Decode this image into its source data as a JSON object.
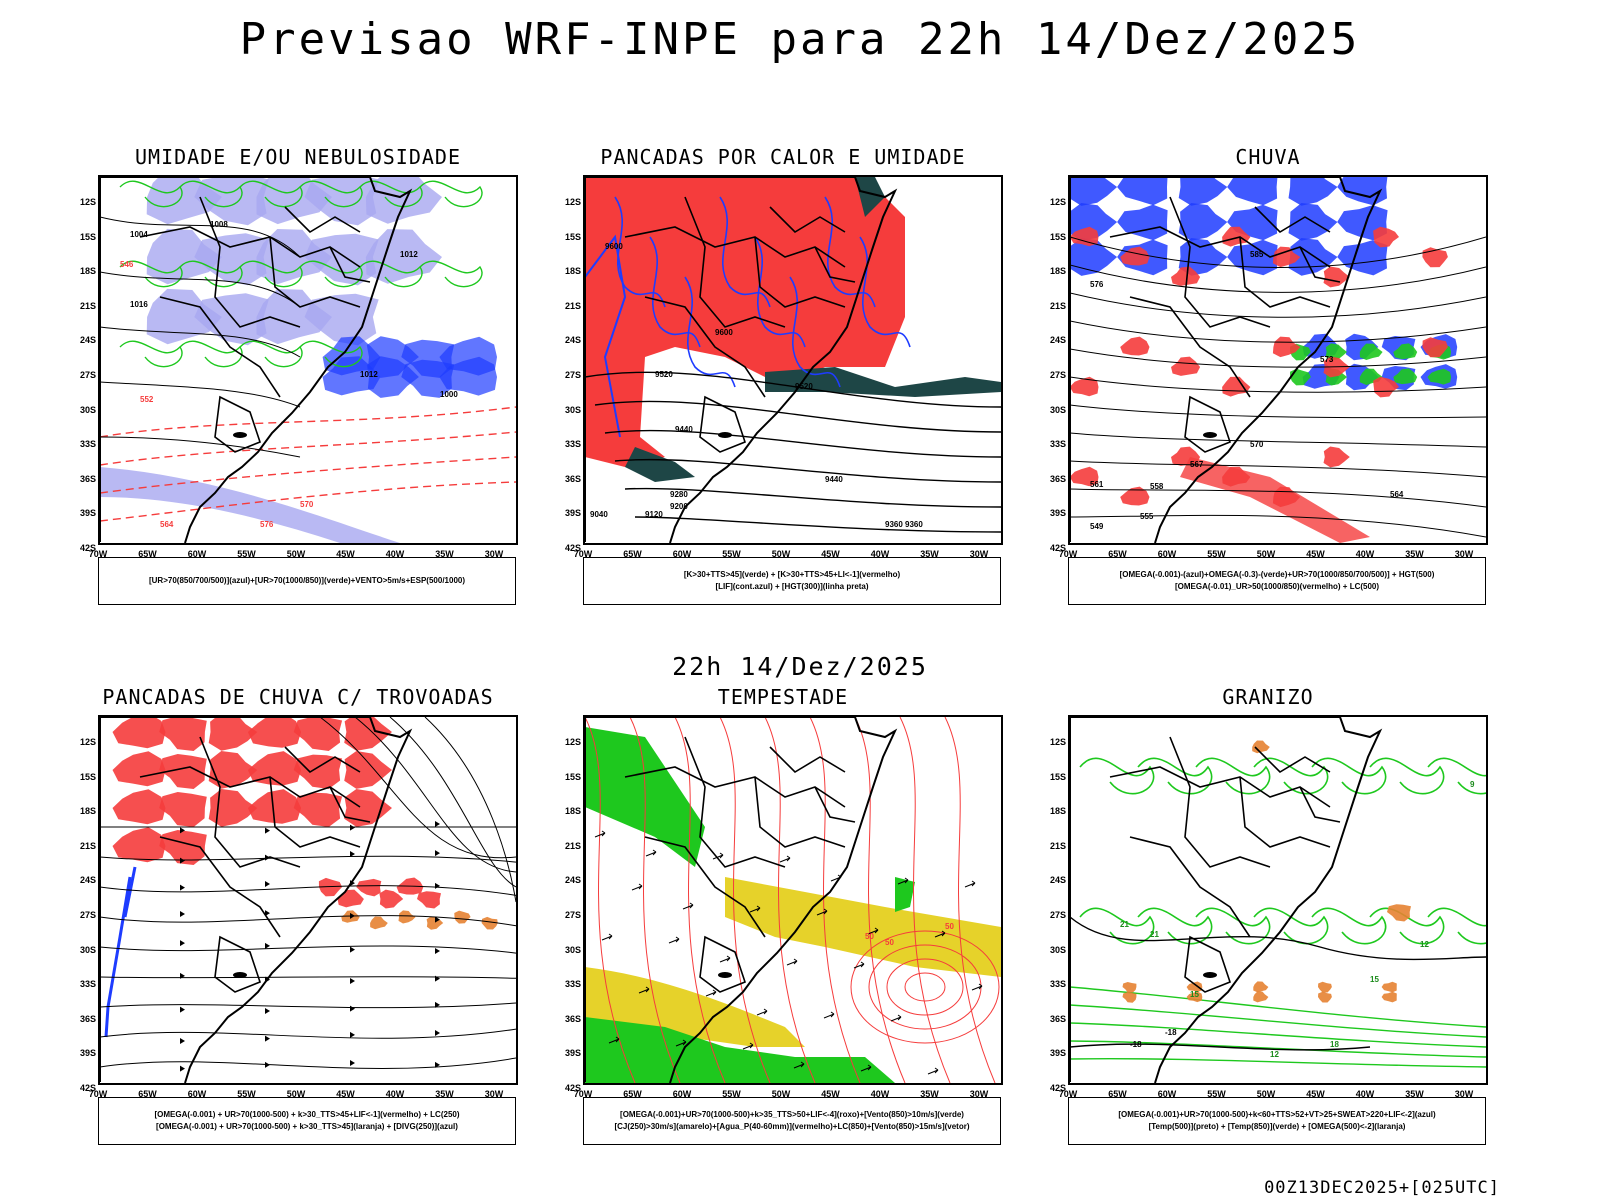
{
  "title": "Previsao WRF-INPE  para 22h 14/Dez/2025",
  "mid_time": "22h 14/Dez/2025",
  "footer": "00Z13DEC2025+[025UTC]",
  "lat_labels": [
    "12S",
    "15S",
    "18S",
    "21S",
    "24S",
    "27S",
    "30S",
    "33S",
    "36S",
    "39S",
    "42S"
  ],
  "lon_labels": [
    "70W",
    "65W",
    "60W",
    "55W",
    "50W",
    "45W",
    "40W",
    "35W",
    "30W"
  ],
  "colors": {
    "red": "#f53c3c",
    "blue": "#1e3cff",
    "light_blue": "#a8a8f0",
    "green": "#1ec81e",
    "yellow": "#e6d22a",
    "orange": "#e68232",
    "dark_teal": "#1e4646",
    "black": "#000000"
  },
  "panels": [
    {
      "title": "UMIDADE E/OU NEBULOSIDADE",
      "legend": [
        "[UR>70(850/700/500)](azul)+[UR>70(1000/850)](verde)+VENTO>5m/s+ESP(500/1000)"
      ],
      "contour_labels": [
        "1004",
        "1008",
        "1012",
        "1016",
        "1012",
        "1000",
        "570",
        "576",
        "564",
        "552",
        "546"
      ]
    },
    {
      "title": "PANCADAS POR CALOR E UMIDADE",
      "legend": [
        "[K>30+TTS>45](verde) + [K>30+TTS>45+LI<-1](vermelho)",
        "[LIF](cont.azul) + [HGT(300)](linha preta)"
      ],
      "contour_labels": [
        "9600",
        "9600",
        "9520",
        "9520",
        "9440",
        "9440",
        "9360",
        "9280",
        "9200",
        "9120",
        "9040",
        "9360"
      ]
    },
    {
      "title": "CHUVA",
      "legend": [
        "[OMEGA(-0.001)-(azul)+OMEGA(-0.3)-(verde)+UR>70(1000/850/700/500)] + HGT(500)",
        "[OMEGA(-0.01)_UR>50(1000/850)(vermelho) + LC(500)"
      ],
      "contour_labels": [
        "585",
        "576",
        "573",
        "570",
        "567",
        "564",
        "561",
        "558",
        "555",
        "549"
      ]
    },
    {
      "title": "PANCADAS DE CHUVA C/ TROVOADAS",
      "legend": [
        "[OMEGA(-0.001) + UR>70(1000-500) + k>30_TTS>45+LIF<-1](vermelho) + LC(250)",
        "[OMEGA(-0.001) + UR>70(1000-500) + k>30_TTS>45](laranja) + [DIVG(250)](azul)"
      ],
      "contour_labels": []
    },
    {
      "title": "TEMPESTADE",
      "legend": [
        "[OMEGA(-0.001)+UR>70(1000-500)+k>35_TTS>50+LIF<-4](roxo)+[Vento(850)>10m/s](verde)",
        "[CJ(250)>30m/s](amarelo)+[Agua_P(40-60mm)](vermelho)+LC(850)+[Vento(850)>15m/s](vetor)"
      ],
      "contour_labels": [
        "50",
        "50",
        "50"
      ]
    },
    {
      "title": "GRANIZO",
      "legend": [
        "[OMEGA(-0.001)+UR>70(1000-500)+k<60+TTS>52+VT>25+SWEAT>220+LIF<-2](azul)",
        "[Temp(500)](preto) + [Temp(850)](verde) + [OMEGA(500)<-2](laranja)"
      ],
      "contour_labels": [
        "-18",
        "-18",
        "15",
        "15",
        "12",
        "12",
        "18",
        "21",
        "21",
        "9"
      ]
    }
  ]
}
